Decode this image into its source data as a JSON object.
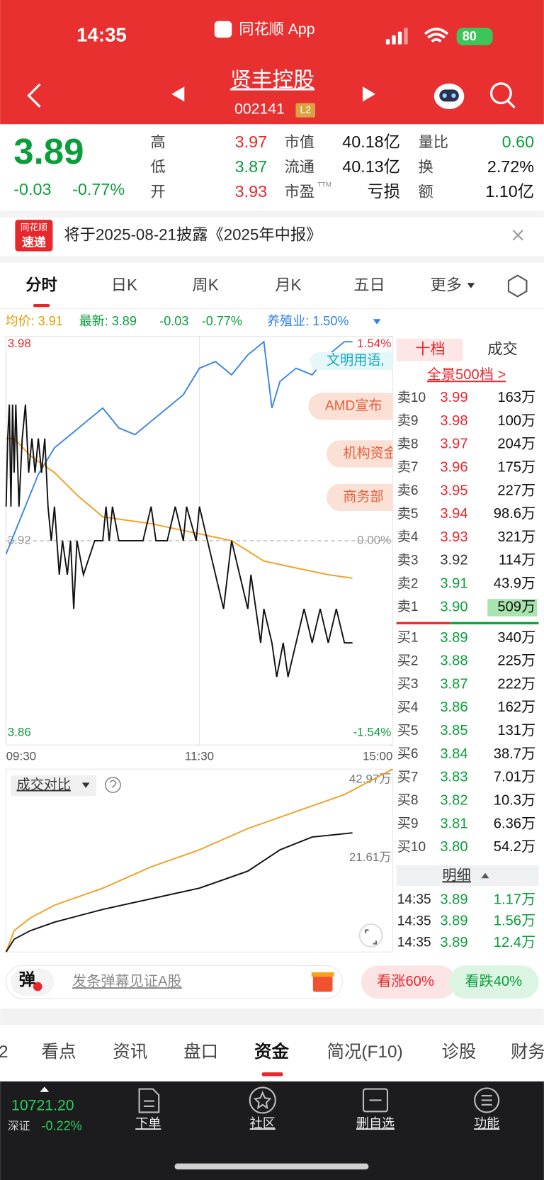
{
  "status_bar": {
    "time": "14:35",
    "app": "同花顺 App",
    "battery": "80"
  },
  "header": {
    "title": "贤丰控股",
    "code": "002141",
    "badge": "L2"
  },
  "quote": {
    "price": "3.89",
    "change": "-0.03",
    "change_pct": "-0.77%",
    "stats": [
      [
        {
          "label": "高",
          "value": "3.97"
        },
        {
          "label": "低",
          "value": "3.87"
        },
        {
          "label": "开",
          "value": "3.93"
        }
      ],
      [
        {
          "label": "市值",
          "value": "40.18亿"
        },
        {
          "label": "流通",
          "value": "40.13亿"
        },
        {
          "label": "市盈",
          "sup": "TTM",
          "value": "亏损"
        }
      ],
      [
        {
          "label": "量比",
          "value": "0.60",
          "color": "#0a9e3a"
        },
        {
          "label": "换",
          "value": "2.72%"
        },
        {
          "label": "额",
          "value": "1.10亿"
        }
      ]
    ]
  },
  "notice": {
    "badge_top": "同花顺",
    "badge_bottom": "速递",
    "text": "将于2025-08-21披露《2025年中报》"
  },
  "tabs": [
    "分时",
    "日K",
    "周K",
    "月K",
    "五日",
    "更多"
  ],
  "order_book": {
    "tabs": [
      "十档",
      "成交"
    ],
    "link": "全景500档 >",
    "sell": [
      [
        "卖10",
        "3.99",
        "163万"
      ],
      [
        "卖9",
        "3.98",
        "100万"
      ],
      [
        "卖8",
        "3.97",
        "204万"
      ],
      [
        "卖7",
        "3.96",
        "175万"
      ],
      [
        "卖6",
        "3.95",
        "227万"
      ],
      [
        "卖5",
        "3.94",
        "98.6万"
      ],
      [
        "卖4",
        "3.93",
        "321万"
      ],
      [
        "卖3",
        "3.92",
        "114万"
      ],
      [
        "卖2",
        "3.91",
        "43.9万"
      ],
      [
        "卖1",
        "3.90",
        "509万"
      ]
    ],
    "buy": [
      [
        "买1",
        "3.89",
        "340万"
      ],
      [
        "买2",
        "3.88",
        "225万"
      ],
      [
        "买3",
        "3.87",
        "222万"
      ],
      [
        "买4",
        "3.86",
        "162万"
      ],
      [
        "买5",
        "3.85",
        "131万"
      ],
      [
        "买6",
        "3.84",
        "38.7万"
      ],
      [
        "买7",
        "3.83",
        "7.01万"
      ],
      [
        "买8",
        "3.82",
        "10.3万"
      ],
      [
        "买9",
        "3.81",
        "6.36万"
      ],
      [
        "买10",
        "3.80",
        "54.2万"
      ]
    ]
  },
  "trades": {
    "header": "明细",
    "rows": [
      [
        "14:35",
        "3.89",
        "1.17万"
      ],
      [
        "14:35",
        "3.89",
        "1.56万"
      ],
      [
        "14:35",
        "3.89",
        "12.4万"
      ]
    ]
  },
  "danmaku": {
    "badge": "弹",
    "placeholder": "发条弹幕见证A股",
    "up": "看涨60%",
    "down": "看跌40%"
  },
  "bottom_tabs": [
    "2",
    "看点",
    "资讯",
    "盘口",
    "资金",
    "简况(F10)",
    "诊股",
    "财务"
  ],
  "nav": {
    "index": "10721.20",
    "market": "深证",
    "change": "-0.22%",
    "items": [
      "下单",
      "社区",
      "删自选",
      "功能"
    ]
  },
  "chart_data": [
    {
      "type": "line",
      "legend": [
        {
          "text": "均价: 3.91",
          "color": "#e89a00"
        },
        {
          "text": "最新: 3.89",
          "color": "#0a9e3a"
        },
        {
          "text": "-0.03",
          "color": "#0a9e3a"
        },
        {
          "text": "-0.77%",
          "color": "#0a9e3a"
        },
        {
          "text": "养殖业: 1.50%",
          "color": "#2f80e0"
        }
      ],
      "xlim": [
        0,
        240
      ],
      "xticks": [
        {
          "value": 0,
          "label": "09:30"
        },
        {
          "value": 120,
          "label": "11:30"
        },
        {
          "value": 240,
          "label": "15:00"
        }
      ],
      "ylim": [
        3.86,
        3.98
      ],
      "yticks": [
        3.86,
        3.92,
        3.98
      ],
      "y2lim": [
        -1.54,
        1.54
      ],
      "y2ticks": [
        {
          "value": -1.54,
          "label": "-1.54%"
        },
        {
          "value": 0,
          "label": "0.00%"
        },
        {
          "value": 1.54,
          "label": "1.54%"
        }
      ],
      "series": [
        {
          "color": "#3a86e0",
          "axis": "y2",
          "x": [
            0,
            10,
            20,
            30,
            40,
            50,
            60,
            70,
            80,
            90,
            100,
            110,
            120,
            130,
            140,
            150,
            160,
            165,
            170,
            180,
            190,
            200,
            210,
            215
          ],
          "values": [
            -0.1,
            0.2,
            0.5,
            0.7,
            0.8,
            0.9,
            1.0,
            0.85,
            0.8,
            0.9,
            1.0,
            1.1,
            1.3,
            1.35,
            1.25,
            1.4,
            1.5,
            1.0,
            1.2,
            1.3,
            1.25,
            1.4,
            1.5,
            1.5
          ]
        },
        {
          "color": "#f0a020",
          "x": [
            0,
            5,
            15,
            30,
            45,
            60,
            90,
            120,
            140,
            160,
            180,
            200,
            215
          ],
          "values": [
            3.95,
            3.95,
            3.945,
            3.94,
            3.933,
            3.927,
            3.925,
            3.922,
            3.92,
            3.914,
            3.912,
            3.91,
            3.909
          ]
        },
        {
          "color": "#111111",
          "x": [
            0,
            1,
            2,
            3,
            4,
            5,
            6,
            8,
            10,
            12,
            14,
            16,
            18,
            20,
            22,
            24,
            26,
            28,
            30,
            33,
            35,
            38,
            40,
            42,
            44,
            48,
            55,
            60,
            62,
            64,
            66,
            70,
            75,
            85,
            90,
            93,
            100,
            105,
            110,
            112,
            118,
            120,
            125,
            130,
            135,
            140,
            145,
            150,
            152,
            155,
            158,
            160,
            165,
            168,
            172,
            175,
            180,
            185,
            190,
            195,
            200,
            205,
            210,
            215
          ],
          "values": [
            3.93,
            3.95,
            3.96,
            3.93,
            3.96,
            3.94,
            3.96,
            3.93,
            3.95,
            3.96,
            3.94,
            3.95,
            3.94,
            3.95,
            3.94,
            3.95,
            3.93,
            3.92,
            3.93,
            3.91,
            3.92,
            3.91,
            3.92,
            3.9,
            3.92,
            3.91,
            3.92,
            3.92,
            3.93,
            3.92,
            3.93,
            3.92,
            3.92,
            3.92,
            3.93,
            3.92,
            3.92,
            3.93,
            3.92,
            3.93,
            3.92,
            3.93,
            3.92,
            3.91,
            3.9,
            3.92,
            3.91,
            3.9,
            3.91,
            3.9,
            3.89,
            3.9,
            3.89,
            3.88,
            3.89,
            3.88,
            3.89,
            3.9,
            3.89,
            3.9,
            3.89,
            3.9,
            3.89,
            3.89
          ]
        }
      ],
      "news": [
        "文明用语,",
        "AMD宣布",
        "机构资金",
        "商务部"
      ]
    },
    {
      "type": "line",
      "title": "成交对比",
      "xlim": [
        0,
        240
      ],
      "ylim": [
        0,
        42.97
      ],
      "yticks": [
        {
          "value": 21.61,
          "label": "21.61万"
        },
        {
          "value": 42.97,
          "label": "42.97万"
        }
      ],
      "series": [
        {
          "color": "#f0a020",
          "x": [
            0,
            5,
            15,
            30,
            60,
            90,
            120,
            150,
            180,
            210,
            240
          ],
          "values": [
            0,
            5,
            8,
            11,
            15,
            20,
            24,
            29,
            33,
            37,
            42.97
          ]
        },
        {
          "color": "#111111",
          "x": [
            0,
            5,
            15,
            30,
            60,
            90,
            120,
            150,
            170,
            190,
            215
          ],
          "values": [
            0,
            3,
            5,
            7,
            10,
            12.5,
            15,
            19,
            24,
            27,
            28
          ]
        }
      ]
    }
  ]
}
